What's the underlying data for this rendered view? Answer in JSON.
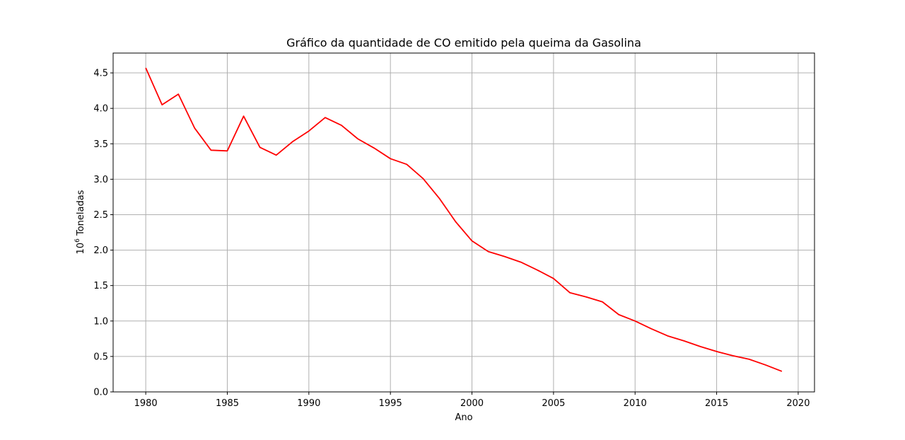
{
  "chart_data": {
    "type": "line",
    "title": "Gráfico da quantidade de CO emitido pela queima da Gasolina",
    "xlabel": "Ano",
    "ylabel_base": "10",
    "ylabel_exp": "6",
    "ylabel_rest": " Toneladas",
    "xlim": [
      1978,
      2021
    ],
    "ylim": [
      0,
      4.78
    ],
    "xticks": [
      1980,
      1985,
      1990,
      1995,
      2000,
      2005,
      2010,
      2015,
      2020
    ],
    "yticks": [
      0.0,
      0.5,
      1.0,
      1.5,
      2.0,
      2.5,
      3.0,
      3.5,
      4.0,
      4.5
    ],
    "yticklabels": [
      "0.0",
      "0.5",
      "1.0",
      "1.5",
      "2.0",
      "2.5",
      "3.0",
      "3.5",
      "4.0",
      "4.5"
    ],
    "grid": true,
    "series": [
      {
        "color": "#ff0000",
        "x": [
          1980,
          1981,
          1982,
          1983,
          1984,
          1985,
          1986,
          1987,
          1988,
          1989,
          1990,
          1991,
          1992,
          1993,
          1994,
          1995,
          1996,
          1997,
          1998,
          1999,
          2000,
          2001,
          2002,
          2003,
          2004,
          2005,
          2006,
          2007,
          2008,
          2009,
          2010,
          2011,
          2012,
          2013,
          2014,
          2015,
          2016,
          2017,
          2018,
          2019
        ],
        "y": [
          4.57,
          4.05,
          4.2,
          3.72,
          3.41,
          3.4,
          3.89,
          3.45,
          3.34,
          3.53,
          3.68,
          3.87,
          3.76,
          3.57,
          3.44,
          3.29,
          3.21,
          3.01,
          2.73,
          2.4,
          2.13,
          1.98,
          1.91,
          1.83,
          1.72,
          1.6,
          1.4,
          1.34,
          1.27,
          1.09,
          1.0,
          0.89,
          0.79,
          0.72,
          0.64,
          0.57,
          0.51,
          0.46,
          0.38,
          0.29
        ]
      }
    ]
  }
}
